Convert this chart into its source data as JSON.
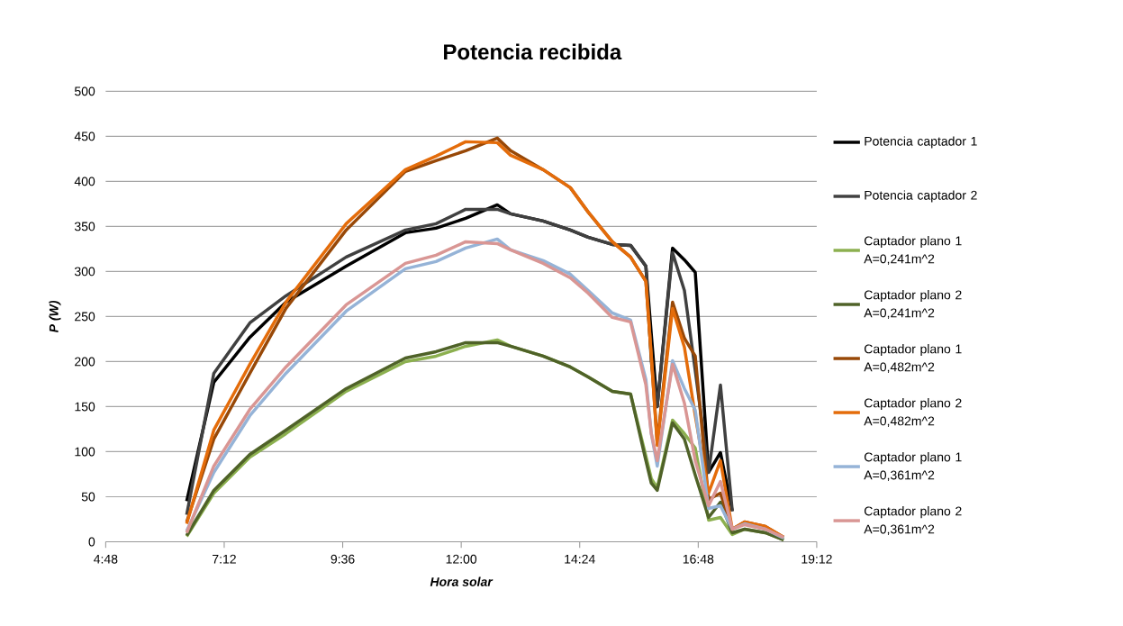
{
  "chart_data": {
    "type": "line",
    "title": "Potencia recibida",
    "xlabel": "Hora solar",
    "ylabel": "P (W)",
    "x": [
      6.44,
      6.99,
      7.72,
      8.45,
      9.67,
      10.87,
      11.49,
      12.09,
      12.73,
      13.0,
      13.66,
      14.21,
      14.57,
      15.06,
      15.43,
      15.74,
      15.85,
      15.97,
      16.28,
      16.52,
      16.74,
      17.01,
      17.25,
      17.49,
      17.74,
      18.16,
      18.53
    ],
    "series": [
      {
        "name": "Potencia captador 1",
        "color": "#000000",
        "values": [
          45,
          177,
          227,
          266,
          306,
          343,
          348,
          359,
          374,
          364,
          356,
          346,
          338,
          330,
          329,
          306,
          230,
          150,
          326,
          313,
          299,
          77,
          99,
          34,
          null,
          null,
          null
        ]
      },
      {
        "name": "Potencia captador 2",
        "color": "#404040",
        "values": [
          30,
          187,
          243,
          273,
          316,
          346,
          353,
          369,
          369,
          364,
          356,
          346,
          338,
          330,
          329,
          306,
          200,
          150,
          321,
          279,
          190,
          77,
          174,
          34,
          null,
          null,
          null
        ]
      },
      {
        "name": "Captador plano 1 A=0,241m^2",
        "color": "#8cb04f",
        "values": [
          6,
          54,
          94,
          120,
          167,
          200,
          206,
          217,
          224,
          217,
          206,
          194,
          183,
          167,
          164,
          95,
          70,
          60,
          135,
          120,
          104,
          24,
          27,
          8,
          14,
          10,
          2
        ]
      },
      {
        "name": "Captador plano 2 A=0,241m^2",
        "color": "#4f6228",
        "values": [
          7,
          57,
          97,
          124,
          170,
          204,
          211,
          221,
          221,
          217,
          206,
          194,
          183,
          167,
          164,
          90,
          65,
          57,
          132,
          114,
          74,
          27,
          44,
          10,
          14,
          10,
          2
        ]
      },
      {
        "name": "Captador plano 1 A=0,482m^2",
        "color": "#984807",
        "values": [
          22,
          114,
          187,
          259,
          346,
          411,
          423,
          434,
          448,
          434,
          413,
          393,
          366,
          333,
          316,
          289,
          206,
          110,
          266,
          226,
          206,
          47,
          54,
          14,
          22,
          17,
          5
        ]
      },
      {
        "name": "Captador plano 2 A=0,482m^2",
        "color": "#e46c0a",
        "values": [
          20,
          124,
          197,
          266,
          353,
          413,
          428,
          444,
          443,
          429,
          413,
          393,
          366,
          333,
          316,
          289,
          206,
          107,
          259,
          216,
          140,
          54,
          90,
          14,
          22,
          17,
          5
        ]
      },
      {
        "name": "Captador plano 1 A=0,361m^2",
        "color": "#95b3d7",
        "values": [
          12,
          77,
          140,
          187,
          256,
          303,
          311,
          326,
          336,
          324,
          312,
          297,
          279,
          254,
          246,
          180,
          120,
          84,
          201,
          170,
          146,
          37,
          40,
          14,
          20,
          14,
          4
        ]
      },
      {
        "name": "Captador plano 2 A=0,361m^2",
        "color": "#d99694",
        "values": [
          10,
          84,
          147,
          194,
          263,
          309,
          318,
          333,
          331,
          324,
          309,
          293,
          276,
          249,
          244,
          174,
          120,
          90,
          197,
          154,
          90,
          40,
          67,
          14,
          19,
          14,
          5
        ]
      }
    ],
    "xlim": [
      4.8,
      19.2
    ],
    "xticks": [
      {
        "value": 4.8,
        "label": "4:48"
      },
      {
        "value": 7.2,
        "label": "7:12"
      },
      {
        "value": 9.6,
        "label": "9:36"
      },
      {
        "value": 12.0,
        "label": "12:00"
      },
      {
        "value": 14.4,
        "label": "14:24"
      },
      {
        "value": 16.8,
        "label": "16:48"
      },
      {
        "value": 19.2,
        "label": "19:12"
      }
    ],
    "ylim": [
      0,
      500
    ],
    "yticks": [
      0,
      50,
      100,
      150,
      200,
      250,
      300,
      350,
      400,
      450,
      500
    ],
    "grid": "y",
    "legend": "right",
    "marker": "none",
    "line_style": "solid"
  }
}
